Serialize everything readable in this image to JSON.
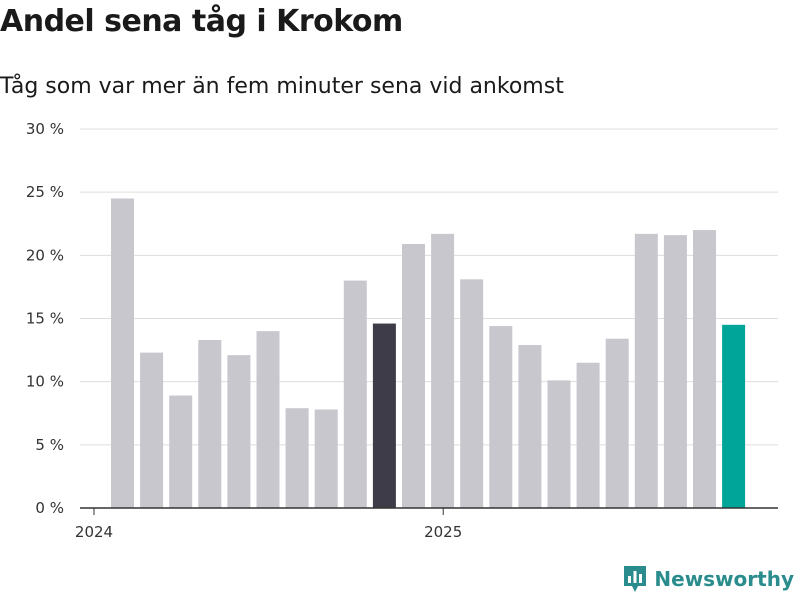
{
  "header": {
    "title": "Andel sena tåg i Krokom",
    "subtitle": "Tåg som var mer än fem minuter sena vid ankomst"
  },
  "brand": {
    "name": "Newsworthy",
    "color": "#2a8c8c"
  },
  "colors": {
    "bar_default": "#c8c7ce",
    "bar_highlight_dark": "#3f3c4a",
    "bar_highlight_accent": "#00a59a",
    "grid": "#dddddd",
    "axis": "#333333"
  },
  "chart_data": {
    "type": "bar",
    "title": "Andel sena tåg i Krokom",
    "subtitle": "Tåg som var mer än fem minuter sena vid ankomst",
    "xlabel": "",
    "ylabel": "",
    "ylim": [
      0,
      30
    ],
    "yticks": [
      0,
      5,
      10,
      15,
      20,
      25,
      30
    ],
    "ytick_labels": [
      "0 %",
      "5 %",
      "10 %",
      "15 %",
      "20 %",
      "25 %",
      "30 %"
    ],
    "xtick_labels": [
      {
        "label": "2024",
        "index": 0
      },
      {
        "label": "2025",
        "index": 12
      }
    ],
    "grid": true,
    "categories": [
      "2024-01",
      "2024-02",
      "2024-03",
      "2024-04",
      "2024-05",
      "2024-06",
      "2024-07",
      "2024-08",
      "2024-09",
      "2024-10",
      "2024-11",
      "2024-12",
      "2025-01",
      "2025-02",
      "2025-03",
      "2025-04",
      "2025-05",
      "2025-06",
      "2025-07",
      "2025-08",
      "2025-09",
      "2025-10"
    ],
    "values": [
      24.5,
      12.3,
      8.9,
      13.3,
      12.1,
      14.0,
      7.9,
      7.8,
      18.0,
      14.6,
      20.9,
      21.7,
      18.1,
      14.4,
      12.9,
      10.1,
      11.5,
      13.4,
      21.7,
      21.6,
      22.0,
      14.5
    ],
    "highlights": [
      {
        "index": 9,
        "style": "dark"
      },
      {
        "index": 21,
        "style": "accent"
      }
    ]
  }
}
